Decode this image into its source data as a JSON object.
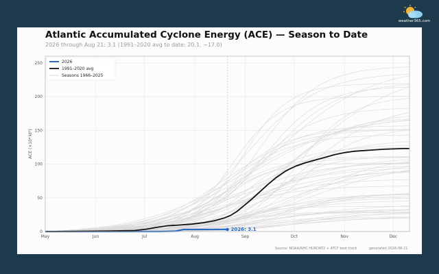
{
  "brand": {
    "name": "weather365.com"
  },
  "chart_data": {
    "type": "line",
    "title": "Atlantic Accumulated Cyclone Energy (ACE) — Season to Date",
    "subtitle": "2026 through Aug 21:  3.1   (1991–2020 avg to date: 20.1, −17.0)",
    "xlabel": "",
    "ylabel": "ACE (×10⁴ kt²)",
    "ylim": [
      0,
      260
    ],
    "yticks": [
      0,
      50,
      100,
      150,
      200,
      250
    ],
    "x_unit": "day of season from May 1",
    "xlim": [
      0,
      224
    ],
    "xticks": [
      {
        "label": "May",
        "day": 0
      },
      {
        "label": "Jun",
        "day": 31
      },
      {
        "label": "Jul",
        "day": 61
      },
      {
        "label": "Aug",
        "day": 92
      },
      {
        "label": "Sep",
        "day": 123
      },
      {
        "label": "Oct",
        "day": 153
      },
      {
        "label": "Nov",
        "day": 184
      },
      {
        "label": "Dec",
        "day": 214
      }
    ],
    "grid": true,
    "legend_position": "top-left",
    "current_day": 112,
    "current_label": "2026: 3.1",
    "series": [
      {
        "name": "2026",
        "color": "#2a6cc4",
        "x": [
          0,
          20,
          45,
          70,
          80,
          85,
          100,
          112
        ],
        "y": [
          0,
          0,
          0,
          0,
          0.5,
          3.0,
          3.0,
          3.1
        ]
      },
      {
        "name": "1991–2020 avg",
        "color": "#111111",
        "x": [
          0,
          20,
          40,
          55,
          62,
          68,
          75,
          82,
          90,
          97,
          104,
          110,
          114,
          118,
          122,
          127,
          132,
          137,
          142,
          148,
          154,
          160,
          166,
          172,
          178,
          184,
          190,
          196,
          202,
          208,
          214,
          220,
          224
        ],
        "y": [
          0,
          0.3,
          0.8,
          1.5,
          3.5,
          6,
          8.5,
          9.5,
          11,
          13,
          16,
          20,
          24,
          30,
          38,
          48,
          59,
          70,
          80,
          90,
          97,
          102,
          106,
          110,
          114,
          117,
          119,
          120,
          121,
          122,
          122.5,
          123,
          123
        ]
      }
    ],
    "background_series_label": "Seasons 1966–2025",
    "background_series_color": "#d9d9d9",
    "source": "Source: NOAA/NHC HURDAT2 + ATCF best track",
    "generated": "generated 2026-08-21"
  }
}
